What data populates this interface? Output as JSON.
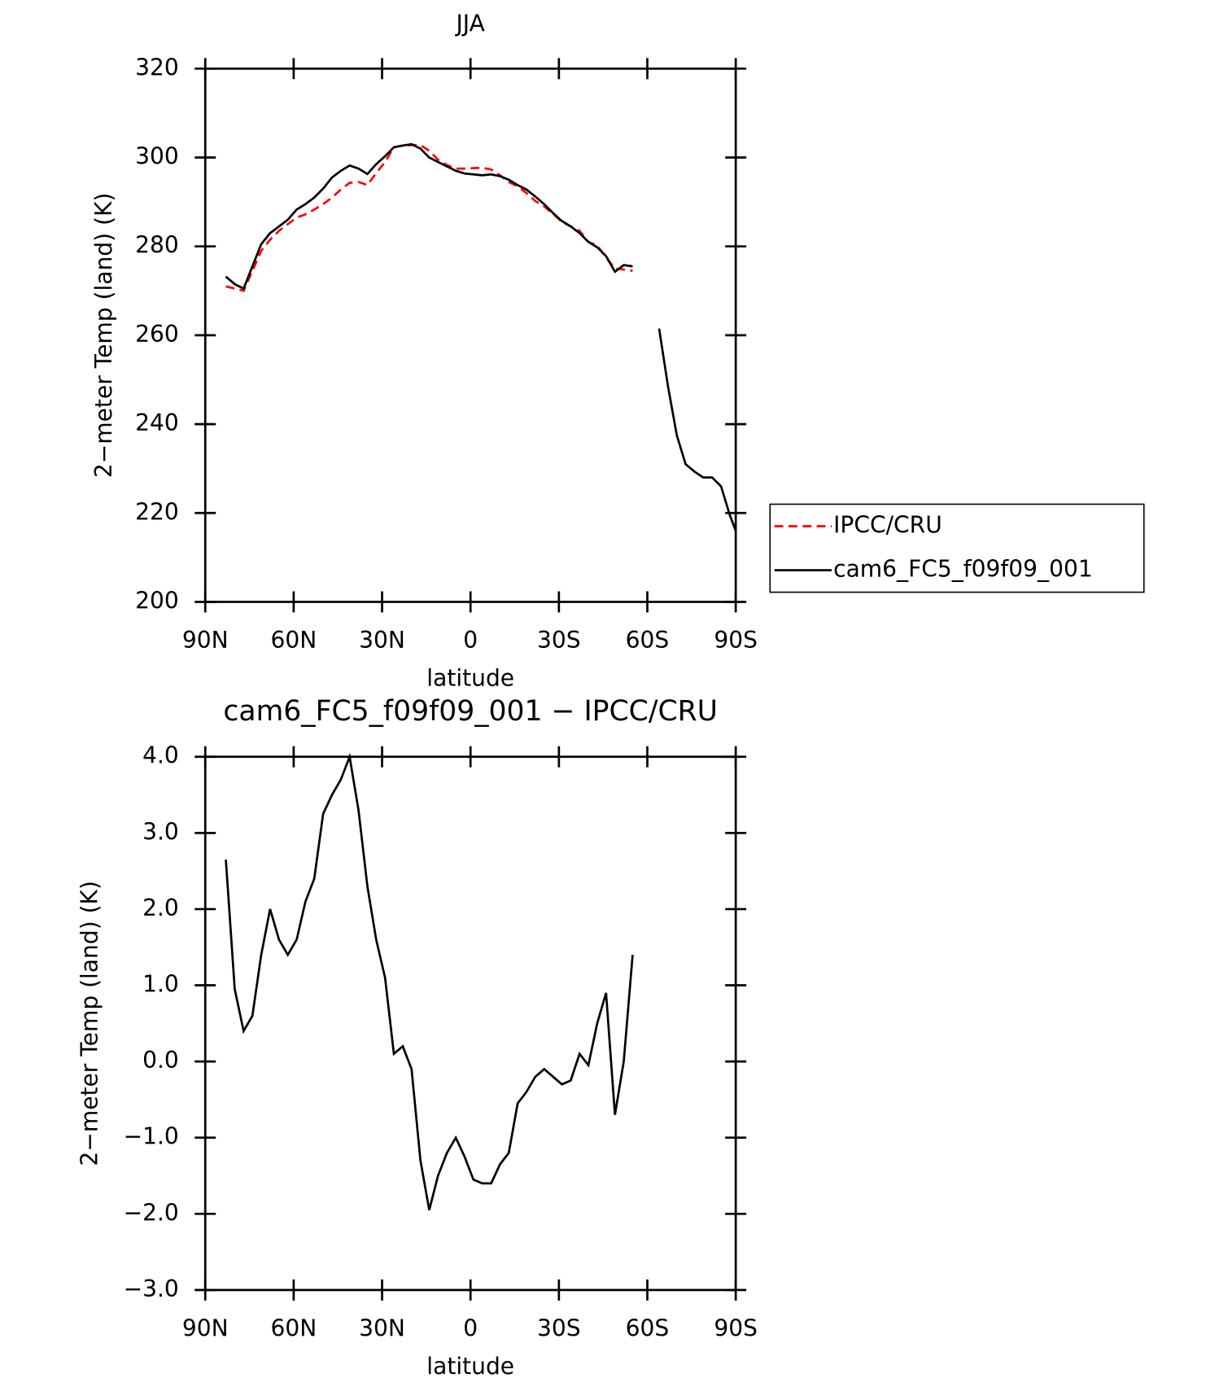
{
  "chart_data": [
    {
      "type": "line",
      "title": "JJA",
      "xlabel": "latitude",
      "ylabel": "2−meter Temp (land) (K)",
      "x": [
        83,
        80,
        77,
        74,
        71,
        68,
        65,
        62,
        59,
        56,
        53,
        50,
        47,
        44,
        41,
        38,
        35,
        32,
        29,
        26,
        23,
        20,
        17,
        14,
        11,
        8,
        5,
        2,
        -1,
        -4,
        -7,
        -10,
        -13,
        -16,
        -19,
        -22,
        -25,
        -28,
        -31,
        -34,
        -37,
        -40,
        -43,
        -46,
        -49,
        -52,
        -55,
        -58,
        -61,
        -64,
        -67,
        -70,
        -73,
        -76,
        -79,
        -82,
        -85,
        -88,
        -90
      ],
      "series": [
        {
          "name": "IPCC/CRU",
          "color": "#ff0000",
          "line_style": "dashed",
          "values": [
            271,
            270.5,
            270,
            274.5,
            279,
            281.5,
            283.5,
            285,
            286.5,
            287.2,
            288.3,
            289.5,
            291,
            292.8,
            294.3,
            294.5,
            293.8,
            296.5,
            299,
            302.3,
            302.7,
            302.8,
            302.8,
            301.5,
            299.5,
            298.3,
            297.5,
            297.5,
            297.6,
            297.7,
            297.3,
            296,
            294.5,
            293.5,
            292,
            290.2,
            289,
            287.3,
            285.5,
            284.5,
            283.5,
            281,
            280.2,
            277.5,
            275,
            274.8,
            274.5,
            null,
            null,
            null,
            null,
            null,
            null,
            null,
            null,
            null,
            null,
            null,
            null
          ]
        },
        {
          "name": "cam6_FC5_f09f09_001",
          "color": "#000000",
          "line_style": "solid",
          "values": [
            273.2,
            271.5,
            270.5,
            275.5,
            280.5,
            283,
            284.5,
            286,
            288.3,
            289.5,
            291,
            293,
            295.5,
            297,
            298.2,
            297.5,
            296.3,
            298.5,
            300.3,
            302.3,
            302.7,
            303,
            302,
            300,
            299,
            298,
            297,
            296.4,
            296.2,
            296,
            296.2,
            295.8,
            295,
            293.8,
            292.8,
            291.2,
            289.5,
            287.5,
            285.7,
            284.5,
            283,
            281,
            279.8,
            277.8,
            274.3,
            275.8,
            275.5,
            null,
            null,
            261.5,
            248.5,
            237.5,
            231,
            229.3,
            228,
            228,
            226,
            219.5,
            216
          ]
        }
      ],
      "xlim": [
        90,
        -90
      ],
      "xticks": [
        {
          "value": 90,
          "label": "90N"
        },
        {
          "value": 60,
          "label": "60N"
        },
        {
          "value": 30,
          "label": "30N"
        },
        0,
        {
          "value": -30,
          "label": "30S"
        },
        {
          "value": -60,
          "label": "60S"
        },
        {
          "value": -90,
          "label": "90S"
        }
      ],
      "ylim": [
        200,
        320
      ],
      "yticks": [
        200,
        220,
        240,
        260,
        280,
        300,
        320
      ],
      "legend": "outside-right"
    },
    {
      "type": "line",
      "title": "cam6_FC5_f09f09_001 − IPCC/CRU",
      "xlabel": "latitude",
      "ylabel": "2−meter Temp (land) (K)",
      "x": [
        83,
        80,
        77,
        74,
        71,
        68,
        65,
        62,
        59,
        56,
        53,
        50,
        47,
        44,
        41,
        38,
        35,
        32,
        29,
        26,
        23,
        20,
        17,
        14,
        11,
        8,
        5,
        2,
        -1,
        -4,
        -7,
        -10,
        -13,
        -16,
        -19,
        -22,
        -25,
        -28,
        -31,
        -34,
        -37,
        -40,
        -43,
        -46,
        -49,
        -52,
        -55
      ],
      "series": [
        {
          "color": "#000000",
          "line_style": "solid",
          "values": [
            2.65,
            0.95,
            0.4,
            0.6,
            1.4,
            2.0,
            1.6,
            1.4,
            1.6,
            2.1,
            2.4,
            3.25,
            3.5,
            3.7,
            4.0,
            3.3,
            2.3,
            1.6,
            1.1,
            0.1,
            0.2,
            -0.1,
            -1.3,
            -1.95,
            -1.5,
            -1.2,
            -1.0,
            -1.25,
            -1.55,
            -1.6,
            -1.6,
            -1.35,
            -1.2,
            -0.55,
            -0.4,
            -0.2,
            -0.1,
            -0.2,
            -0.3,
            -0.25,
            0.1,
            -0.05,
            0.5,
            0.9,
            -0.7,
            0.0,
            1.4
          ]
        }
      ],
      "xlim": [
        90,
        -90
      ],
      "xticks": [
        {
          "value": 90,
          "label": "90N"
        },
        {
          "value": 60,
          "label": "60N"
        },
        {
          "value": 30,
          "label": "30N"
        },
        0,
        {
          "value": -30,
          "label": "30S"
        },
        {
          "value": -60,
          "label": "60S"
        },
        {
          "value": -90,
          "label": "90S"
        }
      ],
      "ylim": [
        -3,
        4
      ],
      "yticks": [
        {
          "value": -3,
          "label": "−3.0"
        },
        {
          "value": -2,
          "label": "−2.0"
        },
        {
          "value": -1,
          "label": "−1.0"
        },
        {
          "value": 0,
          "label": "0.0"
        },
        {
          "value": 1,
          "label": "1.0"
        },
        {
          "value": 2,
          "label": "2.0"
        },
        {
          "value": 3,
          "label": "3.0"
        },
        {
          "value": 4,
          "label": "4.0"
        }
      ]
    }
  ]
}
